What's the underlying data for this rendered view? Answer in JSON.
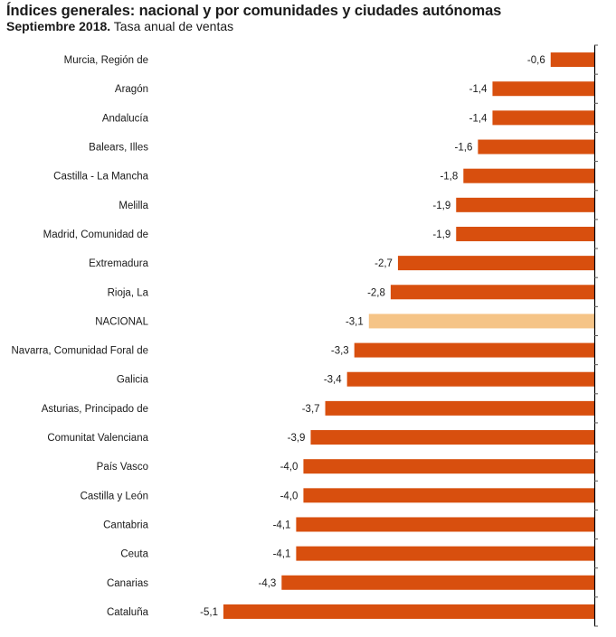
{
  "chart_data": {
    "type": "bar",
    "orientation": "horizontal",
    "title": "Índices generales: nacional y por comunidades y ciudades autónomas",
    "subtitle_bold": "Septiembre 2018.",
    "subtitle_rest": " Tasa anual de ventas",
    "xlabel": "",
    "ylabel": "",
    "xlim": [
      -5.1,
      0
    ],
    "grid": false,
    "legend": "none",
    "colors": {
      "default": "#d84f0e",
      "highlight": "#f5c487",
      "axis": "#000000"
    },
    "highlight_category": "NACIONAL",
    "categories": [
      "Murcia, Región de",
      "Aragón",
      "Andalucía",
      "Balears, Illes",
      "Castilla - La Mancha",
      "Melilla",
      "Madrid, Comunidad de",
      "Extremadura",
      "Rioja, La",
      "NACIONAL",
      "Navarra, Comunidad Foral de",
      "Galicia",
      "Asturias, Principado de",
      "Comunitat Valenciana",
      "País Vasco",
      "Castilla y León",
      "Cantabria",
      "Ceuta",
      "Canarias",
      "Cataluña"
    ],
    "values": [
      -0.6,
      -1.4,
      -1.4,
      -1.6,
      -1.8,
      -1.9,
      -1.9,
      -2.7,
      -2.8,
      -3.1,
      -3.3,
      -3.4,
      -3.7,
      -3.9,
      -4.0,
      -4.0,
      -4.1,
      -4.1,
      -4.3,
      -5.1
    ],
    "value_labels": [
      "-0,6",
      "-1,4",
      "-1,4",
      "-1,6",
      "-1,8",
      "-1,9",
      "-1,9",
      "-2,7",
      "-2,8",
      "-3,1",
      "-3,3",
      "-3,4",
      "-3,7",
      "-3,9",
      "-4,0",
      "-4,0",
      "-4,1",
      "-4,1",
      "-4,3",
      "-5,1"
    ]
  }
}
